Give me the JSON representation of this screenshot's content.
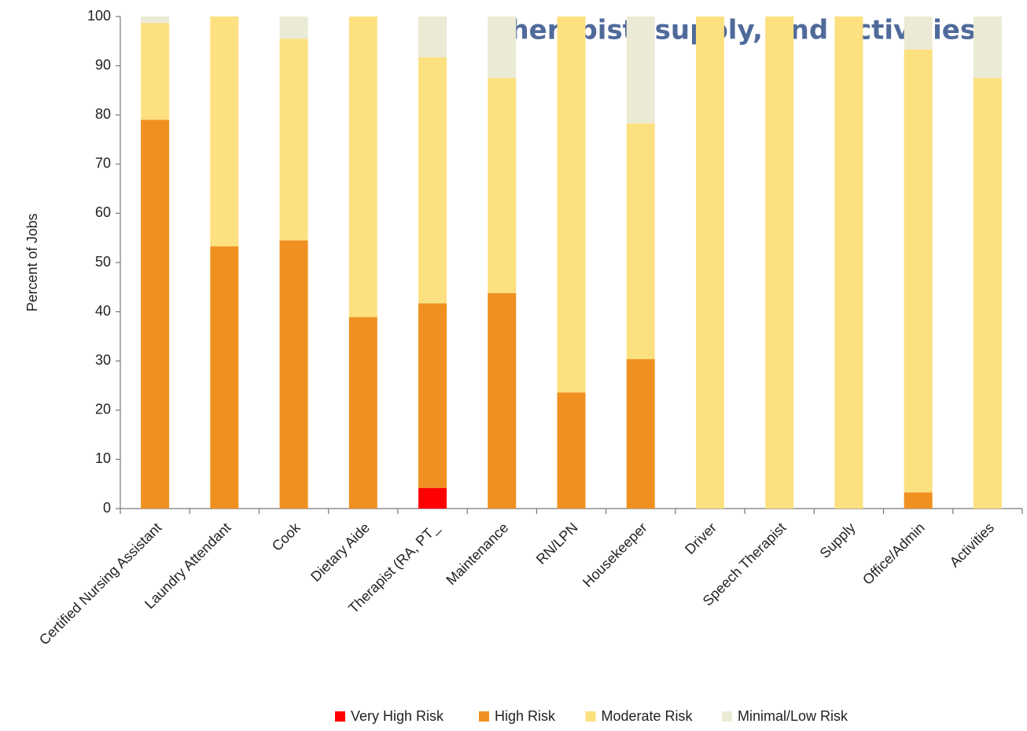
{
  "chart_data": {
    "type": "stacked_bar",
    "annotation": "therapist, supply, and activities.",
    "y_label": "Percent of Jobs",
    "categories": [
      "Certified Nursing Assistant",
      "Laundry Attendant",
      "Cook",
      "Dietary Aide",
      "Therapist (RA, PT_",
      "Maintenance",
      "RN/LPN",
      "Housekeeper",
      "Driver",
      "Speech Therapist",
      "Supply",
      "Office/Admin",
      "Activities"
    ],
    "series": [
      {
        "name": "Very High Risk",
        "color": "#ff0000",
        "values": [
          0,
          0,
          0,
          0,
          4.2,
          0,
          0,
          0,
          0,
          0,
          0,
          0,
          0
        ]
      },
      {
        "name": "High Risk",
        "color": "#f09020",
        "values": [
          79,
          53.3,
          54.5,
          38.9,
          37.5,
          43.8,
          23.6,
          30.4,
          0,
          0,
          0,
          3.3,
          0
        ]
      },
      {
        "name": "Moderate Risk",
        "color": "#fde07f",
        "values": [
          19.7,
          46.7,
          41,
          61.1,
          50,
          43.7,
          76.4,
          47.9,
          100,
          100,
          100,
          90,
          87.5
        ]
      },
      {
        "name": "Minimal/Low Risk",
        "color": "#ebebd5",
        "values": [
          1.3,
          0,
          4.5,
          0,
          8.3,
          12.5,
          0,
          21.7,
          0,
          0,
          0,
          6.7,
          12.5
        ]
      }
    ],
    "ylim": [
      0,
      100
    ],
    "yticks": [
      0,
      10,
      20,
      30,
      40,
      50,
      60,
      70,
      80,
      90,
      100
    ],
    "legend": "bottom"
  }
}
